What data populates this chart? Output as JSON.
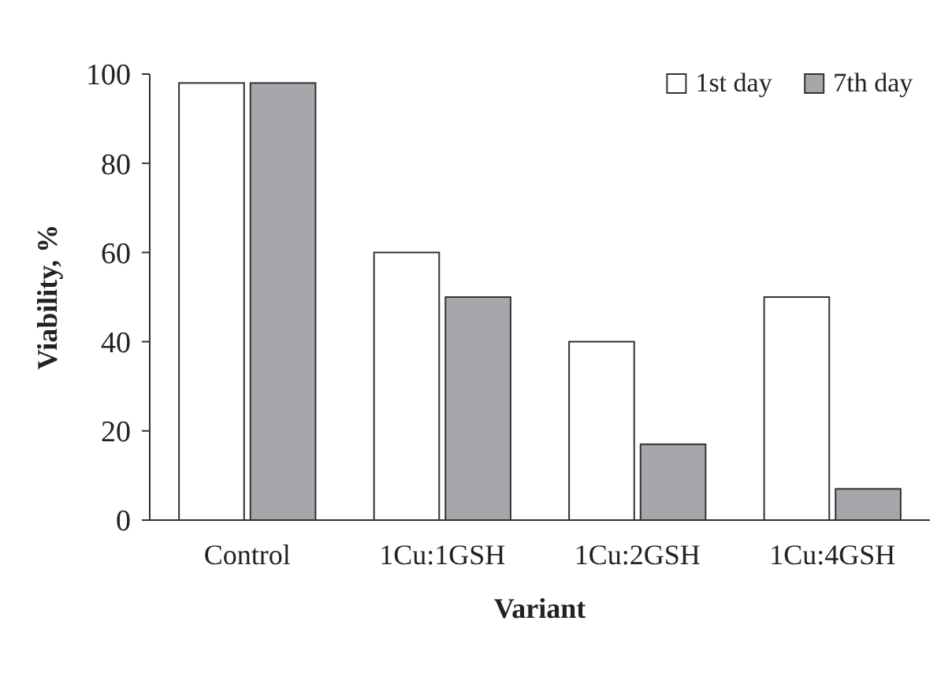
{
  "chart_data": {
    "type": "bar",
    "xlabel": "Variant",
    "ylabel": "Viability, %",
    "categories": [
      "Control",
      "1Cu:1GSH",
      "1Cu:2GSH",
      "1Cu:4GSH"
    ],
    "series": [
      {
        "name": "1st day",
        "color": "#ffffff",
        "values": [
          98,
          60,
          40,
          50
        ]
      },
      {
        "name": "7th day",
        "color": "#a6a7ab",
        "values": [
          98,
          50,
          17,
          7
        ]
      }
    ],
    "ylim": [
      0,
      100
    ],
    "yticks": [
      0,
      20,
      40,
      60,
      80,
      100
    ],
    "legend": "top right"
  }
}
